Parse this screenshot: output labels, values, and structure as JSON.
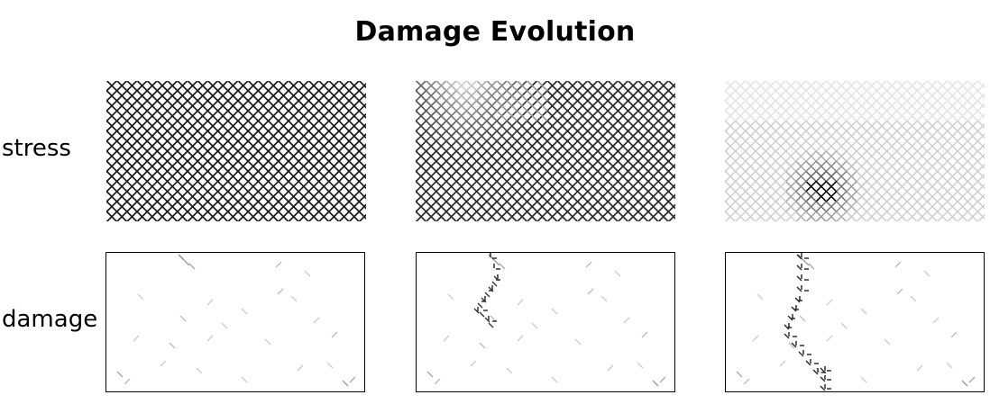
{
  "title": "Damage Evolution",
  "rows": {
    "stress_label": "stress",
    "damage_label": "damage"
  },
  "panels": {
    "stress": [
      {
        "stage": 1,
        "fade": "none",
        "ink": "#1a1a1a"
      },
      {
        "stage": 2,
        "fade": "upper-left",
        "ink": "#2a2a2a"
      },
      {
        "stage": 3,
        "fade": "mostly-faded",
        "ink": "#cfcfcf",
        "hotspot_ink": "#000000"
      }
    ],
    "damage": [
      {
        "stage": 1,
        "crack": "none"
      },
      {
        "stage": 2,
        "crack": "partial"
      },
      {
        "stage": 3,
        "crack": "through"
      }
    ]
  }
}
